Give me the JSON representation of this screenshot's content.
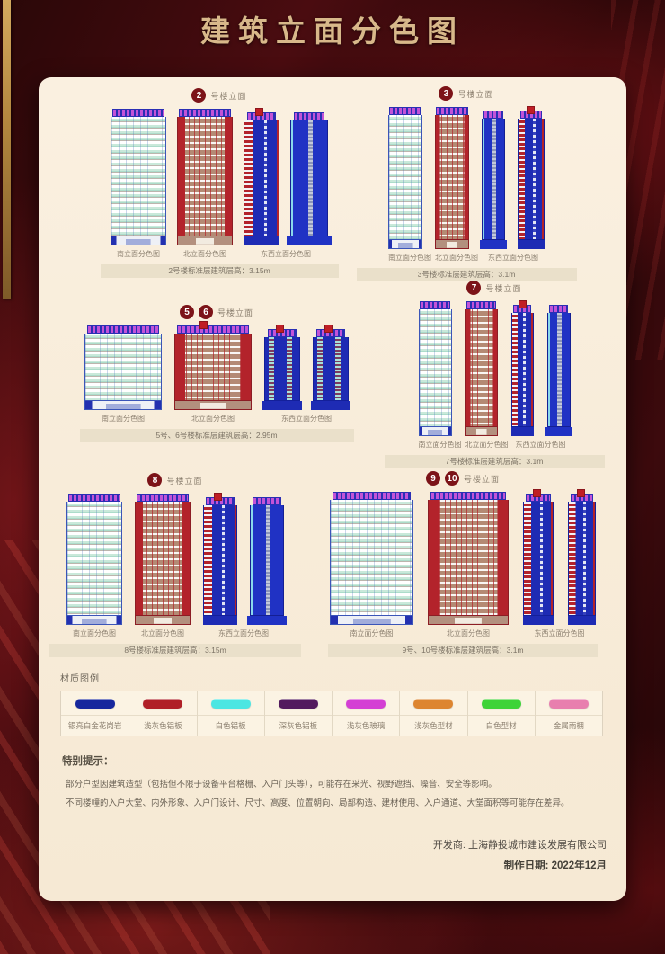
{
  "page": {
    "title": "建筑立面分色图"
  },
  "shared": {
    "header_suffix": "号楼立面",
    "label_south": "南立面分色图",
    "label_north": "北立面分色图",
    "label_ew": "东西立面分色图"
  },
  "sections": {
    "s2": {
      "num": "2",
      "caption": "2号楼标准层建筑层高：3.15m"
    },
    "s3": {
      "num": "3",
      "caption": "3号楼标准层建筑层高：3.1m"
    },
    "s56": {
      "num1": "5",
      "num2": "6",
      "caption": "5号、6号楼标准层建筑层高：2.95m"
    },
    "s7": {
      "num": "7",
      "caption": "7号楼标准层建筑层高：3.1m"
    },
    "s8": {
      "num": "8",
      "caption": "8号楼标准层建筑层高：3.15m"
    },
    "s910": {
      "num1": "9",
      "num2": "10",
      "caption": "9号、10号楼标准层建筑层高：3.1m"
    }
  },
  "legend": {
    "title": "材质图例",
    "items": [
      {
        "label": "银亮白金花岗岩",
        "color": "#16279d"
      },
      {
        "label": "浅灰色铝板",
        "color": "#b01f27"
      },
      {
        "label": "白色铝板",
        "color": "#4ce6e2"
      },
      {
        "label": "深灰色铝板",
        "color": "#531a5e"
      },
      {
        "label": "浅灰色玻璃",
        "color": "#d43fd4"
      },
      {
        "label": "浅灰色型材",
        "color": "#dd8530"
      },
      {
        "label": "白色型材",
        "color": "#3ed338"
      },
      {
        "label": "金属雨棚",
        "color": "#e87fae"
      }
    ]
  },
  "notes": {
    "title": "特别提示：",
    "lines": [
      "部分户型因建筑造型（包括但不限于设备平台格栅、入户门头等），可能存在采光、视野遮挡、噪音、安全等影响。",
      "不同楼幢的入户大堂、内外形象、入户门设计、尺寸、高度、位置朝向、局部构造、建材使用、入户通道、大堂面积等可能存在差异。"
    ]
  },
  "footer": {
    "developer": "开发商: 上海静投城市建设发展有限公司",
    "date": "制作日期: 2022年12月"
  },
  "colors": {
    "badge": "#7c1318",
    "title_gold": "#d8b88a",
    "card_bg": "#f8ecd9"
  }
}
